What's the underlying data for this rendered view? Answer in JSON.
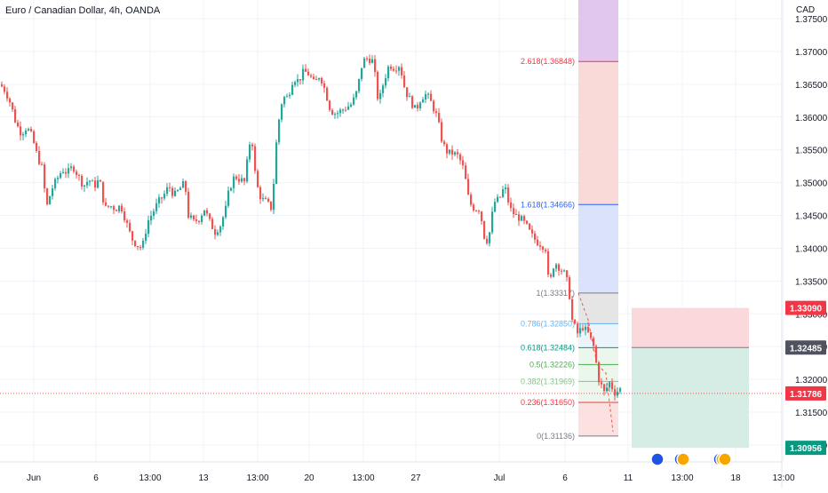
{
  "header": {
    "title": "Euro / Canadian Dollar, 4h, OANDA",
    "currency": "CAD"
  },
  "colors": {
    "up": "#26a69a",
    "down": "#ef5350",
    "grid": "#f0f3fa",
    "axis_text": "#131722",
    "fib_top": "#e1c6ee",
    "fib_red": "#f9d2d2",
    "fib_blue": "#d3defa",
    "fib_grey": "#e0e0e0",
    "fib_lightblue": "#e7f2fa",
    "fib_green": "#e8f4ea",
    "fib_pink": "#fbdcdc",
    "box_red": "#fad8db",
    "box_green": "#d6ede6",
    "badge_red": "#f23645",
    "badge_grey": "#50535e",
    "badge_teal": "#089981",
    "current_line": "#ef5350"
  },
  "chart_data": {
    "type": "candlestick",
    "title": "Euro / Canadian Dollar, 4h, OANDA",
    "ylabel": "CAD",
    "ylim": [
      1.3085,
      1.3765
    ],
    "grid": true,
    "y_ticks": [
      "1.37500",
      "1.37000",
      "1.36500",
      "1.36000",
      "1.35500",
      "1.35000",
      "1.34500",
      "1.34000",
      "1.33500",
      "1.33000",
      "1.32500",
      "1.32000",
      "1.31500",
      "1.31000"
    ],
    "x_ticks": [
      {
        "label": "Jun",
        "x": 38
      },
      {
        "label": "6",
        "x": 108
      },
      {
        "label": "13:00",
        "x": 169
      },
      {
        "label": "13",
        "x": 229
      },
      {
        "label": "13:00",
        "x": 290
      },
      {
        "label": "20",
        "x": 348
      },
      {
        "label": "13:00",
        "x": 409
      },
      {
        "label": "27",
        "x": 468
      },
      {
        "label": "Jul",
        "x": 562
      },
      {
        "label": "6",
        "x": 636
      },
      {
        "label": "11",
        "x": 707
      },
      {
        "label": "13:00",
        "x": 768
      },
      {
        "label": "18",
        "x": 828
      },
      {
        "label": "13:00",
        "x": 882
      }
    ],
    "close_path": [
      [
        0,
        1.365
      ],
      [
        6,
        1.364
      ],
      [
        12,
        1.362
      ],
      [
        18,
        1.359
      ],
      [
        24,
        1.3575
      ],
      [
        30,
        1.3585
      ],
      [
        36,
        1.357
      ],
      [
        42,
        1.354
      ],
      [
        48,
        1.352
      ],
      [
        52,
        1.346
      ],
      [
        58,
        1.349
      ],
      [
        64,
        1.3505
      ],
      [
        70,
        1.352
      ],
      [
        76,
        1.3515
      ],
      [
        82,
        1.3525
      ],
      [
        88,
        1.351
      ],
      [
        94,
        1.3495
      ],
      [
        100,
        1.3505
      ],
      [
        106,
        1.3495
      ],
      [
        112,
        1.3505
      ],
      [
        118,
        1.346
      ],
      [
        124,
        1.3465
      ],
      [
        130,
        1.346
      ],
      [
        136,
        1.3465
      ],
      [
        142,
        1.344
      ],
      [
        148,
        1.3415
      ],
      [
        154,
        1.3405
      ],
      [
        160,
        1.34
      ],
      [
        166,
        1.344
      ],
      [
        172,
        1.3455
      ],
      [
        178,
        1.347
      ],
      [
        184,
        1.348
      ],
      [
        190,
        1.3495
      ],
      [
        196,
        1.348
      ],
      [
        202,
        1.349
      ],
      [
        208,
        1.35
      ],
      [
        212,
        1.345
      ],
      [
        218,
        1.344
      ],
      [
        224,
        1.3445
      ],
      [
        230,
        1.346
      ],
      [
        236,
        1.344
      ],
      [
        242,
        1.3425
      ],
      [
        248,
        1.3435
      ],
      [
        254,
        1.346
      ],
      [
        258,
        1.349
      ],
      [
        264,
        1.351
      ],
      [
        270,
        1.3505
      ],
      [
        276,
        1.35
      ],
      [
        280,
        1.356
      ],
      [
        284,
        1.356
      ],
      [
        288,
        1.35
      ],
      [
        294,
        1.3475
      ],
      [
        300,
        1.347
      ],
      [
        306,
        1.346
      ],
      [
        312,
        1.358
      ],
      [
        318,
        1.363
      ],
      [
        324,
        1.363
      ],
      [
        330,
        1.366
      ],
      [
        336,
        1.3655
      ],
      [
        342,
        1.367
      ],
      [
        348,
        1.3665
      ],
      [
        354,
        1.365
      ],
      [
        360,
        1.3665
      ],
      [
        366,
        1.364
      ],
      [
        372,
        1.361
      ],
      [
        378,
        1.3605
      ],
      [
        384,
        1.361
      ],
      [
        390,
        1.3615
      ],
      [
        396,
        1.362
      ],
      [
        402,
        1.364
      ],
      [
        408,
        1.3685
      ],
      [
        414,
        1.369
      ],
      [
        420,
        1.3685
      ],
      [
        426,
        1.362
      ],
      [
        432,
        1.3655
      ],
      [
        438,
        1.368
      ],
      [
        444,
        1.3675
      ],
      [
        450,
        1.368
      ],
      [
        456,
        1.364
      ],
      [
        462,
        1.3625
      ],
      [
        468,
        1.361
      ],
      [
        474,
        1.363
      ],
      [
        480,
        1.3635
      ],
      [
        486,
        1.362
      ],
      [
        492,
        1.36
      ],
      [
        498,
        1.356
      ],
      [
        504,
        1.3545
      ],
      [
        510,
        1.3545
      ],
      [
        516,
        1.354
      ],
      [
        522,
        1.352
      ],
      [
        528,
        1.347
      ],
      [
        534,
        1.346
      ],
      [
        540,
        1.346
      ],
      [
        546,
        1.341
      ],
      [
        550,
        1.3415
      ],
      [
        556,
        1.347
      ],
      [
        562,
        1.3475
      ],
      [
        568,
        1.3495
      ],
      [
        574,
        1.346
      ],
      [
        580,
        1.345
      ],
      [
        586,
        1.3445
      ],
      [
        592,
        1.3435
      ],
      [
        598,
        1.342
      ],
      [
        604,
        1.341
      ],
      [
        610,
        1.3405
      ],
      [
        614,
        1.34
      ],
      [
        618,
        1.334
      ],
      [
        624,
        1.338
      ],
      [
        630,
        1.337
      ],
      [
        636,
        1.336
      ],
      [
        640,
        1.334
      ],
      [
        644,
        1.329
      ],
      [
        650,
        1.327
      ],
      [
        656,
        1.328
      ],
      [
        662,
        1.327
      ],
      [
        668,
        1.325
      ],
      [
        674,
        1.32
      ],
      [
        680,
        1.318
      ],
      [
        686,
        1.3195
      ],
      [
        692,
        1.318
      ],
      [
        698,
        1.3185
      ],
      [
        701,
        1.3179
      ]
    ],
    "fib_levels": [
      {
        "ratio": "2.618",
        "price": 1.36848,
        "label": "2.618(1.36848)",
        "color": "#f23645"
      },
      {
        "ratio": "1.618",
        "price": 1.34666,
        "label": "1.618(1.34666)",
        "color": "#2962ff"
      },
      {
        "ratio": "1",
        "price": 1.33317,
        "label": "1(1.33317)",
        "color": "#787b86"
      },
      {
        "ratio": "0.786",
        "price": 1.3285,
        "label": "0.786(1.32850)",
        "color": "#64b5f6"
      },
      {
        "ratio": "0.618",
        "price": 1.32484,
        "label": "0.618(1.32484)",
        "color": "#089981"
      },
      {
        "ratio": "0.5",
        "price": 1.32226,
        "label": "0.5(1.32226)",
        "color": "#4caf50"
      },
      {
        "ratio": "0.382",
        "price": 1.31969,
        "label": "0.382(1.31969)",
        "color": "#81c784"
      },
      {
        "ratio": "0.236",
        "price": 1.3165,
        "label": "0.236(1.31650)",
        "color": "#f23645"
      },
      {
        "ratio": "0",
        "price": 1.31136,
        "label": "0(1.31136)",
        "color": "#787b86"
      }
    ],
    "position_box": {
      "stop": 1.3309,
      "entry": 1.32485,
      "target": 1.30956
    },
    "current_price": 1.31786,
    "price_labels": [
      {
        "name": "stop",
        "text": "1.33090",
        "price": 1.3309
      },
      {
        "name": "entry",
        "text": "1.32485",
        "price": 1.32485
      },
      {
        "name": "current",
        "text": "1.31786",
        "price": 1.31786
      },
      {
        "name": "target",
        "text": "1.30956",
        "price": 1.30956
      }
    ]
  },
  "events": [
    {
      "name": "event-icon-1"
    },
    {
      "name": "event-icon-2"
    },
    {
      "name": "event-icon-3"
    }
  ]
}
